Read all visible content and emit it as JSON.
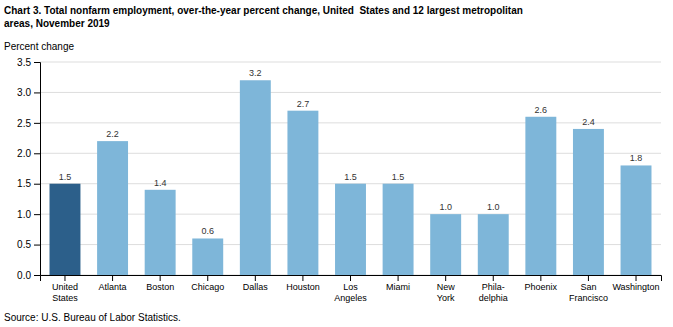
{
  "chart_data": {
    "type": "bar",
    "title": "Chart 3. Total nonfarm employment, over-the-year percent change, United  States and 12 largest metropolitan\nareas, November 2019",
    "ylabel": "Percent change",
    "source": "Source: U.S. Bureau of Labor Statistics.",
    "categories": [
      "United\nStates",
      "Atlanta",
      "Boston",
      "Chicago",
      "Dallas",
      "Houston",
      "Los\nAngeles",
      "Miami",
      "New\nYork",
      "Phila-\ndelphia",
      "Phoenix",
      "San\nFrancisco",
      "Washington"
    ],
    "values": [
      1.5,
      2.2,
      1.4,
      0.6,
      3.2,
      2.7,
      1.5,
      1.5,
      1.0,
      1.0,
      2.6,
      2.4,
      1.8
    ],
    "value_labels": [
      "1.5",
      "2.2",
      "1.4",
      "0.6",
      "3.2",
      "2.7",
      "1.5",
      "1.5",
      "1.0",
      "1.0",
      "2.6",
      "2.4",
      "1.8"
    ],
    "data_labels": true,
    "colors": [
      "#2c5f8a",
      "#7eb6d9",
      "#7eb6d9",
      "#7eb6d9",
      "#7eb6d9",
      "#7eb6d9",
      "#7eb6d9",
      "#7eb6d9",
      "#7eb6d9",
      "#7eb6d9",
      "#7eb6d9",
      "#7eb6d9",
      "#7eb6d9"
    ],
    "ylim": [
      0,
      3.5
    ],
    "yticks": [
      {
        "value": 0.0,
        "label": "0.0"
      },
      0.5,
      {
        "value": 1.0,
        "label": "1.0"
      },
      1.5,
      {
        "value": 2.0,
        "label": "2.0"
      },
      2.5,
      {
        "value": 3.0,
        "label": "3.0"
      },
      3.5
    ],
    "grid": true
  }
}
